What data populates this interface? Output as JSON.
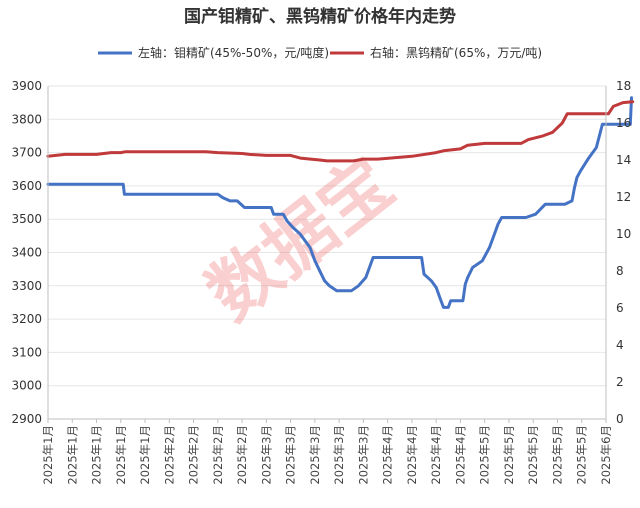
{
  "title": "国产钼精矿、黑钨精矿价格年内走势",
  "watermark": "数据宝",
  "colors": {
    "left_series": "#4472c4",
    "right_series": "#c0393b",
    "grid": "#e6e6e6",
    "axis": "#bfbfbf"
  },
  "chart_data": {
    "type": "line",
    "title": "国产钼精矿、黑钨精矿价格年内走势",
    "legend_position": "top",
    "grid": true,
    "x_tick_labels": [
      "2025年1月",
      "2025年1月",
      "2025年1月",
      "2025年1月",
      "2025年1月",
      "2025年2月",
      "2025年2月",
      "2025年2月",
      "2025年2月",
      "2025年3月",
      "2025年3月",
      "2025年3月",
      "2025年3月",
      "2025年3月",
      "2025年4月",
      "2025年4月",
      "2025年4月",
      "2025年4月",
      "2025年5月",
      "2025年5月",
      "2025年5月",
      "2025年5月",
      "2025年5月",
      "2025年6月"
    ],
    "left_axis": {
      "ylim": [
        2900,
        3900
      ],
      "ticks": [
        2900,
        3000,
        3100,
        3200,
        3300,
        3400,
        3500,
        3600,
        3700,
        3800,
        3900
      ]
    },
    "right_axis": {
      "ylim": [
        0,
        18
      ],
      "ticks": [
        0,
        2,
        4,
        6,
        8,
        10,
        12,
        14,
        16,
        18
      ]
    },
    "series": [
      {
        "name": "左轴：钼精矿(45%-50%，元/吨度)",
        "axis": "left",
        "points": [
          [
            0,
            3605
          ],
          [
            3.1,
            3605
          ],
          [
            3.15,
            3575
          ],
          [
            7.0,
            3575
          ],
          [
            7.2,
            3565
          ],
          [
            7.5,
            3555
          ],
          [
            7.8,
            3555
          ],
          [
            8.1,
            3535
          ],
          [
            9.2,
            3535
          ],
          [
            9.3,
            3515
          ],
          [
            9.7,
            3515
          ],
          [
            9.85,
            3495
          ],
          [
            10.1,
            3475
          ],
          [
            10.4,
            3455
          ],
          [
            10.8,
            3415
          ],
          [
            11.0,
            3375
          ],
          [
            11.2,
            3345
          ],
          [
            11.4,
            3315
          ],
          [
            11.6,
            3300
          ],
          [
            11.9,
            3285
          ],
          [
            12.5,
            3285
          ],
          [
            12.8,
            3300
          ],
          [
            13.1,
            3325
          ],
          [
            13.4,
            3385
          ],
          [
            15.4,
            3385
          ],
          [
            15.5,
            3335
          ],
          [
            15.8,
            3315
          ],
          [
            16.0,
            3295
          ],
          [
            16.2,
            3255
          ],
          [
            16.3,
            3235
          ],
          [
            16.5,
            3235
          ],
          [
            16.6,
            3255
          ],
          [
            17.1,
            3255
          ],
          [
            17.2,
            3305
          ],
          [
            17.3,
            3325
          ],
          [
            17.5,
            3355
          ],
          [
            17.9,
            3375
          ],
          [
            18.2,
            3415
          ],
          [
            18.45,
            3465
          ],
          [
            18.55,
            3485
          ],
          [
            18.7,
            3505
          ],
          [
            19.7,
            3505
          ],
          [
            20.1,
            3515
          ],
          [
            20.5,
            3545
          ],
          [
            21.3,
            3545
          ],
          [
            21.6,
            3555
          ],
          [
            21.7,
            3595
          ],
          [
            21.8,
            3625
          ],
          [
            21.95,
            3645
          ],
          [
            22.3,
            3685
          ],
          [
            22.6,
            3715
          ],
          [
            22.85,
            3785
          ],
          [
            24.0,
            3785
          ],
          [
            24.05,
            3865
          ]
        ]
      },
      {
        "name": "右轴：黑钨精矿(65%，万元/吨)",
        "axis": "right",
        "points": [
          [
            0,
            14.2
          ],
          [
            0.7,
            14.3
          ],
          [
            2.0,
            14.3
          ],
          [
            2.6,
            14.4
          ],
          [
            3.0,
            14.4
          ],
          [
            3.2,
            14.45
          ],
          [
            6.5,
            14.45
          ],
          [
            7.0,
            14.4
          ],
          [
            8.0,
            14.35
          ],
          [
            8.3,
            14.3
          ],
          [
            9.0,
            14.25
          ],
          [
            10.0,
            14.25
          ],
          [
            10.4,
            14.1
          ],
          [
            11.2,
            14.0
          ],
          [
            11.5,
            13.95
          ],
          [
            12.6,
            13.95
          ],
          [
            13.0,
            14.05
          ],
          [
            13.6,
            14.05
          ],
          [
            15.0,
            14.2
          ],
          [
            16.0,
            14.4
          ],
          [
            16.3,
            14.5
          ],
          [
            17.0,
            14.6
          ],
          [
            17.3,
            14.8
          ],
          [
            18.0,
            14.9
          ],
          [
            19.5,
            14.9
          ],
          [
            19.8,
            15.1
          ],
          [
            20.4,
            15.3
          ],
          [
            20.8,
            15.5
          ],
          [
            21.2,
            16.0
          ],
          [
            21.4,
            16.5
          ],
          [
            23.1,
            16.5
          ],
          [
            23.3,
            16.9
          ],
          [
            23.7,
            17.1
          ],
          [
            24.1,
            17.15
          ]
        ]
      }
    ]
  }
}
